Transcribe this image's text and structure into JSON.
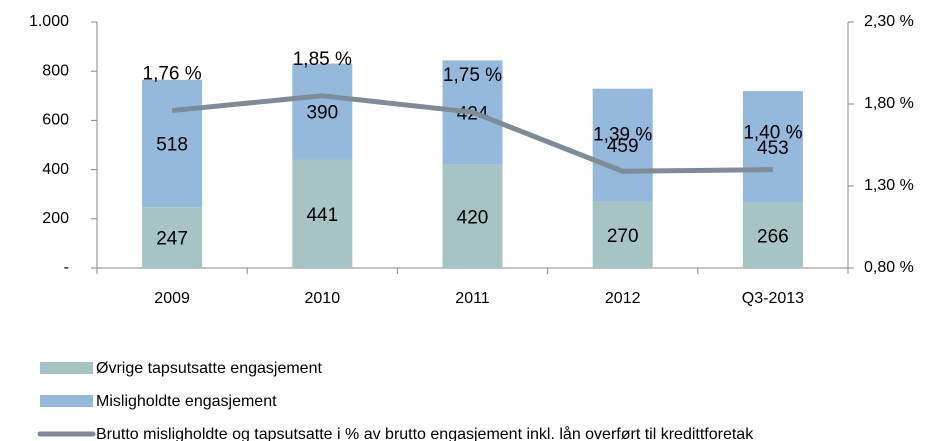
{
  "chart_data": {
    "type": "bar",
    "categories": [
      "2009",
      "2010",
      "2011",
      "2012",
      "Q3-2013"
    ],
    "series": [
      {
        "name": "Øvrige tapsutsatte engasjement",
        "color": "#a6c4c3",
        "values": [
          247,
          441,
          420,
          270,
          266
        ]
      },
      {
        "name": "Misligholdte engasjement",
        "color": "#95b9dd",
        "values": [
          518,
          390,
          424,
          459,
          453
        ]
      },
      {
        "name": "Brutto misligholdte og tapsutsatte i % av brutto engasjement inkl. lån overført til kredittforetak",
        "color": "#7f8b97",
        "axis": "y2",
        "type": "line",
        "values": [
          1.76,
          1.85,
          1.75,
          1.39,
          1.4
        ],
        "value_labels": [
          "1,76 %",
          "1,85 %",
          "1,75 %",
          "1,39 %",
          "1,40 %"
        ]
      }
    ],
    "stacked": true,
    "ylim": [
      0,
      1000
    ],
    "yticks": [
      {
        "value": 0,
        "label": "-"
      },
      200,
      400,
      600,
      800,
      {
        "value": 1000,
        "label": "1.000"
      }
    ],
    "y2lim": [
      0.8,
      2.3
    ],
    "y2ticks": [
      {
        "value": 0.8,
        "label": "0,80 %"
      },
      {
        "value": 1.3,
        "label": "1,30 %"
      },
      {
        "value": 1.8,
        "label": "1,80 %"
      },
      {
        "value": 2.3,
        "label": "2,30 %"
      }
    ],
    "grid": false,
    "legend": "bottom-left"
  }
}
